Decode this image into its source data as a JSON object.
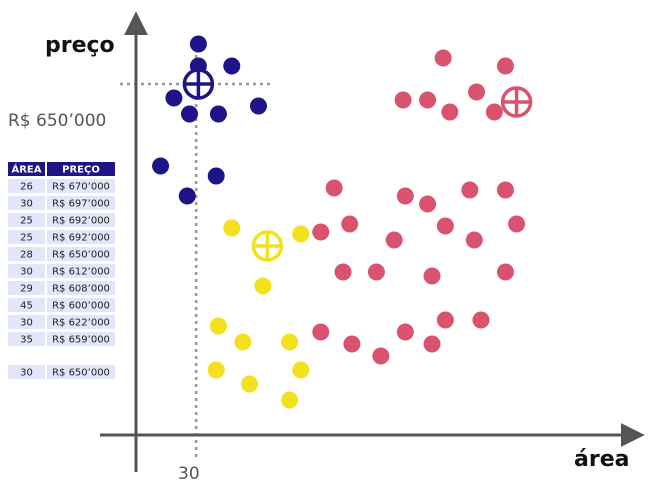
{
  "chart_data": {
    "type": "scatter",
    "xlabel": "área",
    "ylabel": "preço",
    "xlim": [
      0,
      100
    ],
    "ylim": [
      0,
      100
    ],
    "annotations": {
      "y_value_label": "R$ 650’000",
      "x_value_label": "30",
      "y_value": 86.5,
      "x_value": 11.5
    },
    "colors": {
      "blue": "#1f1487",
      "yellow": "#f2e11c",
      "pink": "#d9536f",
      "axis": "#555555",
      "guide": "#999999",
      "table_header": "#1f1487",
      "table_row": "#e3e6fb"
    },
    "series": [
      {
        "color": "#1f1487",
        "values": [
          [
            12,
            96.5
          ],
          [
            12,
            91
          ],
          [
            19.5,
            91
          ],
          [
            6.5,
            83
          ],
          [
            10,
            79
          ],
          [
            16.5,
            79
          ],
          [
            25.5,
            81
          ],
          [
            3.5,
            66
          ],
          [
            16,
            63.5
          ],
          [
            9.5,
            58.5
          ]
        ],
        "centroid": [
          12,
          86.5
        ]
      },
      {
        "color": "#f2e11c",
        "values": [
          [
            19.5,
            50.5
          ],
          [
            35,
            49
          ],
          [
            26.5,
            36
          ],
          [
            16.5,
            26
          ],
          [
            22,
            22
          ],
          [
            32.5,
            22
          ],
          [
            16,
            15
          ],
          [
            35,
            15
          ],
          [
            23.5,
            11.5
          ],
          [
            32.5,
            7.5
          ]
        ],
        "centroid": [
          27.5,
          46
        ]
      },
      {
        "color": "#d9536f",
        "values": [
          [
            67,
            93
          ],
          [
            81,
            91
          ],
          [
            58,
            82.5
          ],
          [
            63.5,
            82.5
          ],
          [
            74.5,
            84.5
          ],
          [
            68.5,
            79.5
          ],
          [
            78.5,
            79.5
          ],
          [
            42.5,
            60.5
          ],
          [
            58.5,
            58.5
          ],
          [
            63.5,
            56.5
          ],
          [
            73,
            60
          ],
          [
            81,
            60
          ],
          [
            39.5,
            49.5
          ],
          [
            46,
            51.5
          ],
          [
            56,
            47.5
          ],
          [
            67.5,
            51
          ],
          [
            74,
            47.5
          ],
          [
            83.5,
            51.5
          ],
          [
            44.5,
            39.5
          ],
          [
            52,
            39.5
          ],
          [
            64.5,
            38.5
          ],
          [
            81,
            39.5
          ],
          [
            67.5,
            27.5
          ],
          [
            75.5,
            27.5
          ],
          [
            39.5,
            24.5
          ],
          [
            46.5,
            21.5
          ],
          [
            58.5,
            24.5
          ],
          [
            64.5,
            21.5
          ],
          [
            53,
            18.5
          ]
        ],
        "centroid": [
          83.5,
          82
        ]
      }
    ],
    "table": {
      "headers": [
        "ÁREA",
        "PREÇO"
      ],
      "rows": [
        [
          "26",
          "R$ 670’000"
        ],
        [
          "30",
          "R$ 697’000"
        ],
        [
          "25",
          "R$ 692’000"
        ],
        [
          "25",
          "R$ 692’000"
        ],
        [
          "28",
          "R$ 650’000"
        ],
        [
          "30",
          "R$ 612’000"
        ],
        [
          "29",
          "R$ 608’000"
        ],
        [
          "45",
          "R$ 600’000"
        ],
        [
          "30",
          "R$ 622’000"
        ],
        [
          "35",
          "R$ 659’000"
        ]
      ],
      "summary": [
        "30",
        "R$ 650’000"
      ]
    }
  }
}
